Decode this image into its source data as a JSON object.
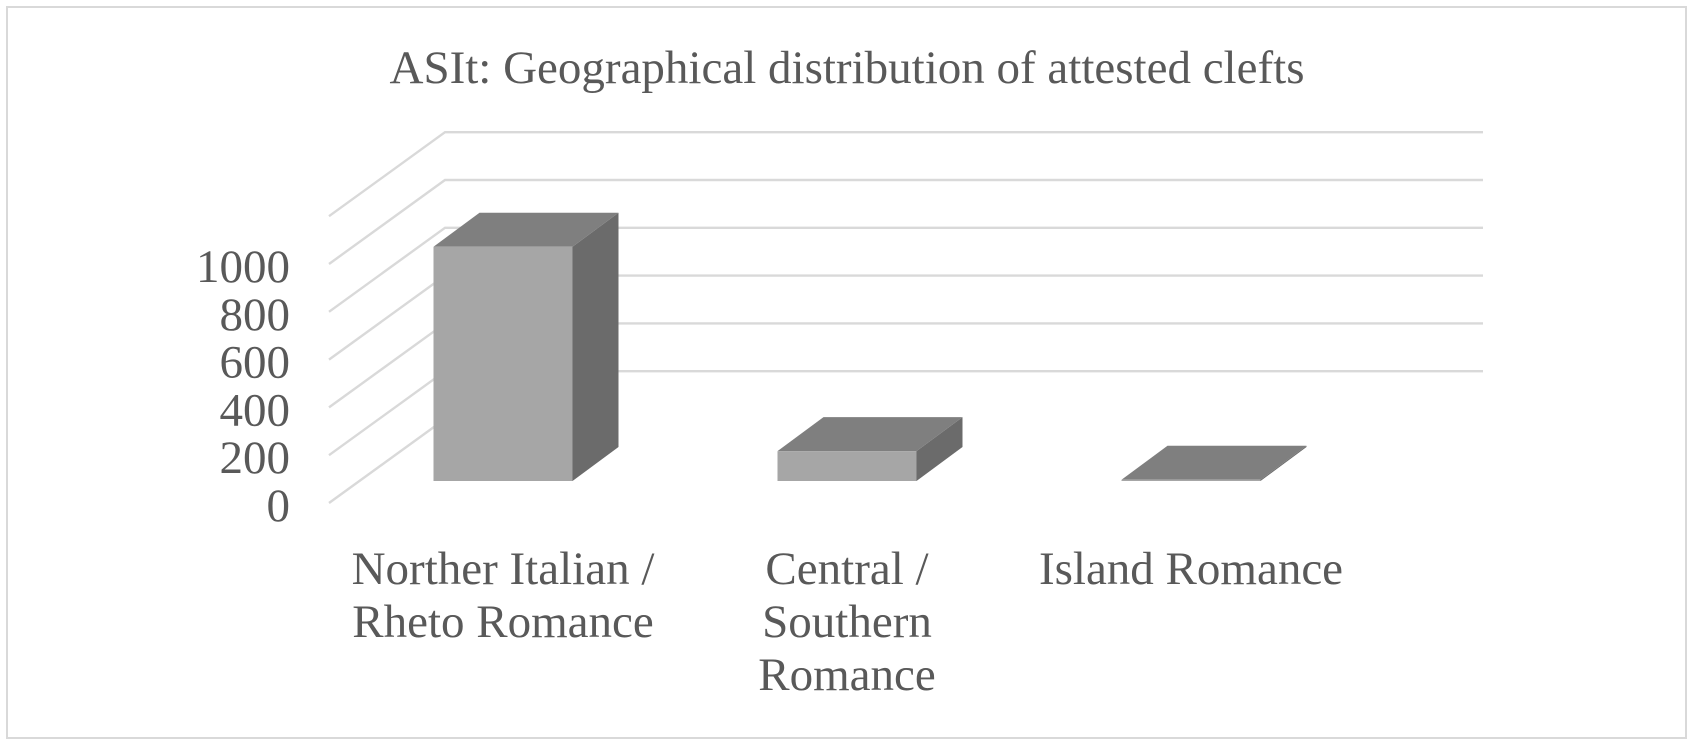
{
  "chart_data": {
    "type": "bar",
    "title": "ASIt: Geographical distribution of attested clefts",
    "categories": [
      [
        "Norther Italian /",
        "Rheto Romance"
      ],
      [
        "Central /",
        "Southern",
        "Romance"
      ],
      [
        "Island Romance"
      ]
    ],
    "values": [
      980,
      125,
      5
    ],
    "ylim": [
      0,
      1000
    ],
    "yticks": [
      0,
      200,
      400,
      600,
      800,
      1000
    ],
    "xlabel": "",
    "ylabel": "",
    "grid": true,
    "legend": "none",
    "three_d": true,
    "colors": {
      "bar_front": "#a6a6a6",
      "bar_top": "#7f7f7f",
      "bar_side": "#6b6b6b",
      "grid": "#d9d9d9",
      "text": "#595959",
      "frame": "#d9d9d9"
    }
  }
}
